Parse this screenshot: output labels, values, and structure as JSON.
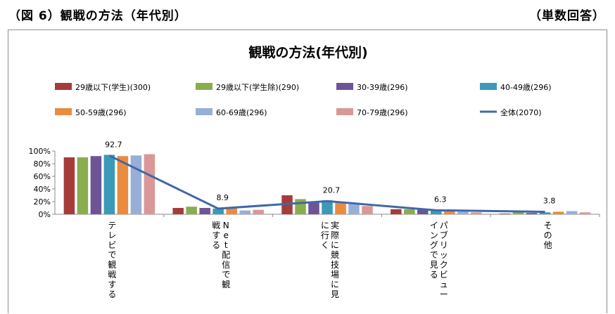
{
  "header": {
    "left": "（図 6）観戦の方法（年代別）",
    "right": "（単数回答）"
  },
  "chart_data": {
    "type": "bar",
    "title": "観戦の方法(年代別)",
    "categories": [
      "テレビで観戦する",
      "Net配信で観戦する",
      "実際に競技場に見に行く",
      "パブリックビューイングで見る",
      "その他"
    ],
    "category_lines": [
      [
        "テレビで観戦する"
      ],
      [
        "Net配信で観",
        "戦する"
      ],
      [
        "実際に競技場に見",
        "に行く"
      ],
      [
        "パブリックビュー",
        "イングで見る"
      ],
      [
        "その他"
      ]
    ],
    "series": [
      {
        "name": "29歳以下(学生)(300)",
        "color": "#a53c39",
        "values": [
          90,
          10,
          30,
          8,
          1
        ]
      },
      {
        "name": "29歳以下(学生除)(290)",
        "color": "#8aad4e",
        "values": [
          90,
          12,
          24,
          8,
          3
        ]
      },
      {
        "name": "30-39歳(296)",
        "color": "#6f5495",
        "values": [
          92,
          10,
          20,
          7,
          2
        ]
      },
      {
        "name": "40-49歳(296)",
        "color": "#3b9ab7",
        "values": [
          94,
          9,
          22,
          6,
          3
        ]
      },
      {
        "name": "50-59歳(296)",
        "color": "#ea8b3e",
        "values": [
          92,
          10,
          19,
          7,
          4
        ]
      },
      {
        "name": "60-69歳(296)",
        "color": "#97afd6",
        "values": [
          93,
          6,
          17,
          4,
          5
        ]
      },
      {
        "name": "70-79歳(296)",
        "color": "#d99897",
        "values": [
          95,
          7,
          13,
          3,
          3
        ]
      }
    ],
    "line_series": {
      "name": "全体(2070)",
      "color": "#4068a6",
      "values": [
        92.7,
        8.9,
        20.7,
        6.3,
        3.8
      ]
    },
    "line_labels": [
      "92.7",
      "8.9",
      "20.7",
      "6.3",
      "3.8"
    ],
    "y_ticks": [
      "0%",
      "20%",
      "40%",
      "60%",
      "80%",
      "100%"
    ],
    "ylim": [
      0,
      100
    ],
    "legend_position": "top"
  }
}
